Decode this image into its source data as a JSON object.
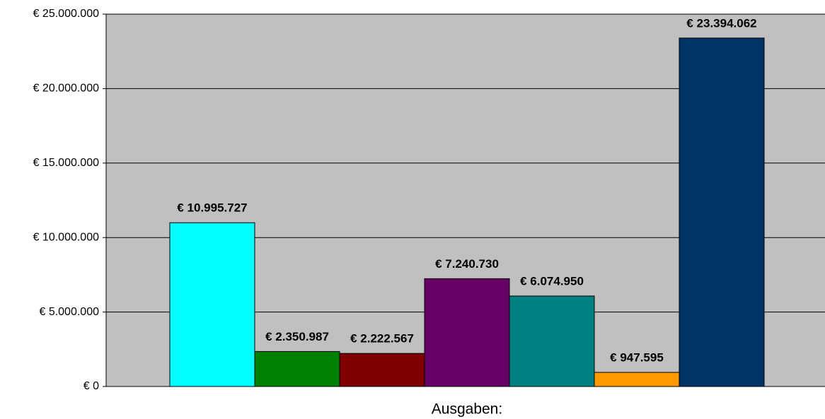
{
  "chart_data": {
    "type": "bar",
    "categories": [
      "Ausgaben:"
    ],
    "series": [
      {
        "color": "#00ffff",
        "values": [
          10995727
        ],
        "value_labels": [
          "€ 10.995.727"
        ]
      },
      {
        "color": "#008000",
        "values": [
          2350987
        ],
        "value_labels": [
          "€ 2.350.987"
        ]
      },
      {
        "color": "#800000",
        "values": [
          2222567
        ],
        "value_labels": [
          "€ 2.222.567"
        ]
      },
      {
        "color": "#660066",
        "values": [
          7240730
        ],
        "value_labels": [
          "€ 7.240.730"
        ]
      },
      {
        "color": "#008080",
        "values": [
          6074950
        ],
        "value_labels": [
          "€ 6.074.950"
        ]
      },
      {
        "color": "#ff9900",
        "values": [
          947595
        ],
        "value_labels": [
          "€ 947.595"
        ]
      },
      {
        "color": "#003366",
        "values": [
          23394062
        ],
        "value_labels": [
          "€ 23.394.062"
        ]
      }
    ],
    "ylim": [
      0,
      25000000
    ],
    "yticks": [
      {
        "value": 0,
        "label": "€ 0"
      },
      {
        "value": 5000000,
        "label": "€ 5.000.000"
      },
      {
        "value": 10000000,
        "label": "€ 10.000.000"
      },
      {
        "value": 15000000,
        "label": "€ 15.000.000"
      },
      {
        "value": 20000000,
        "label": "€ 20.000.000"
      },
      {
        "value": 25000000,
        "label": "€ 25.000.000"
      }
    ],
    "grid": true,
    "plot_background": "#c0c0c0"
  }
}
